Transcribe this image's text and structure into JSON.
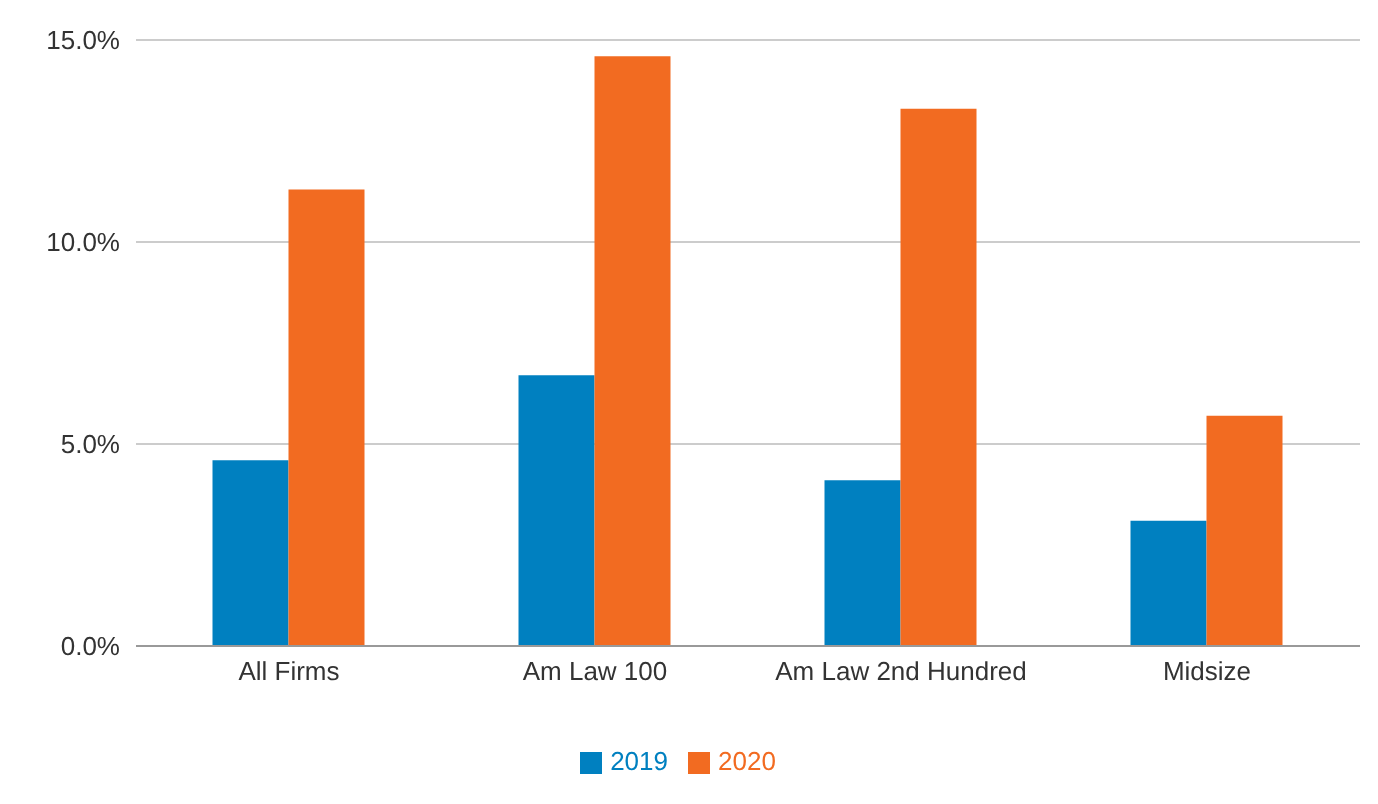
{
  "chart_data": {
    "type": "bar",
    "categories": [
      "All Firms",
      "Am Law 100",
      "Am Law 2nd Hundred",
      "Midsize"
    ],
    "series": [
      {
        "name": "2019",
        "color": "#0080c0",
        "values": [
          4.6,
          6.7,
          4.1,
          3.1
        ]
      },
      {
        "name": "2020",
        "color": "#f26b21",
        "values": [
          11.3,
          14.6,
          13.3,
          5.7
        ]
      }
    ],
    "ylim": [
      0,
      15
    ],
    "yticks": [
      {
        "value": 0,
        "label": "0.0%"
      },
      {
        "value": 5,
        "label": "5.0%"
      },
      {
        "value": 10,
        "label": "10.0%"
      },
      {
        "value": 15,
        "label": "15.0%"
      }
    ],
    "grid": "y",
    "legend": "bottom"
  }
}
